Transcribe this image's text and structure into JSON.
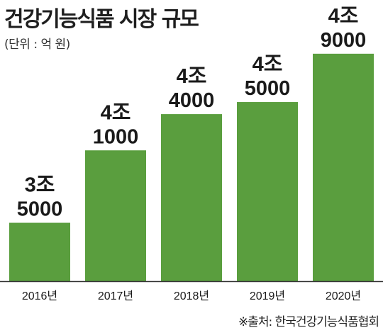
{
  "chart_data": {
    "type": "bar",
    "title": "건강기능식품 시장 규모",
    "unit_label": "(단위 : 억 원)",
    "categories": [
      "2016년",
      "2017년",
      "2018년",
      "2019년",
      "2020년"
    ],
    "values": [
      35000,
      41000,
      44000,
      45000,
      49000
    ],
    "value_labels": [
      [
        "3조",
        "5000"
      ],
      [
        "4조",
        "1000"
      ],
      [
        "4조",
        "4000"
      ],
      [
        "4조",
        "5000"
      ],
      [
        "4조",
        "9000"
      ]
    ],
    "source": "※출처: 한국건강기능식품협회",
    "bar_color": "#5a9e3e",
    "axis_color": "#333333",
    "grid": false,
    "legend": "none"
  }
}
